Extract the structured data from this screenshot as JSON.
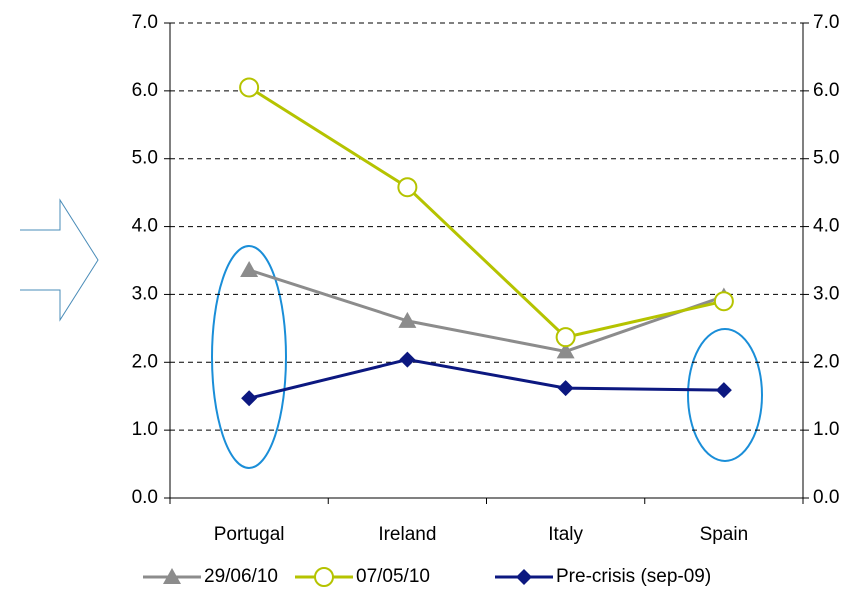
{
  "chart_data": {
    "type": "line",
    "categories": [
      "Portugal",
      "Ireland",
      "Italy",
      "Spain"
    ],
    "series": [
      {
        "name": "29/06/10",
        "color": "#8c8c8c",
        "marker": "triangle",
        "values": [
          3.36,
          2.61,
          2.16,
          2.97
        ]
      },
      {
        "name": "07/05/10",
        "color": "#b5c300",
        "marker": "open-circle",
        "values": [
          6.05,
          4.58,
          2.37,
          2.9
        ]
      },
      {
        "name": "Pre-crisis (sep-09)",
        "color": "#0c1880",
        "marker": "diamond",
        "values": [
          1.47,
          2.04,
          1.62,
          1.59
        ]
      }
    ],
    "ylim": [
      0,
      7
    ],
    "yticks": [
      {
        "value": 0,
        "label": "0.0"
      },
      {
        "value": 1,
        "label": "1.0"
      },
      {
        "value": 2,
        "label": "2.0"
      },
      {
        "value": 3,
        "label": "3.0"
      },
      {
        "value": 4,
        "label": "4.0"
      },
      {
        "value": 5,
        "label": "5.0"
      },
      {
        "value": 6,
        "label": "6.0"
      },
      {
        "value": 7,
        "label": "7.0"
      }
    ],
    "y2lim": [
      0,
      7
    ],
    "y2ticks": [
      {
        "value": 0,
        "label": "0.0"
      },
      {
        "value": 1,
        "label": "1.0"
      },
      {
        "value": 2,
        "label": "2.0"
      },
      {
        "value": 3,
        "label": "3.0"
      },
      {
        "value": 4,
        "label": "4.0"
      },
      {
        "value": 5,
        "label": "5.0"
      },
      {
        "value": 6,
        "label": "6.0"
      },
      {
        "value": 7,
        "label": "7.0"
      }
    ],
    "grid": true
  }
}
